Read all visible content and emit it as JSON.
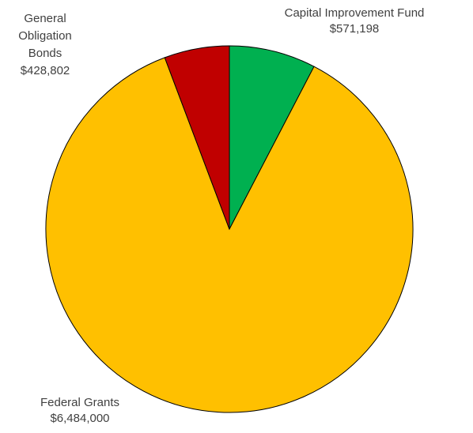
{
  "chart_data": {
    "type": "pie",
    "title": "",
    "categories": [
      "Capital Improvement Fund",
      "Federal Grants",
      "General Obligation Bonds"
    ],
    "values": [
      571198,
      6484000,
      428802
    ],
    "value_labels": [
      "$571,198",
      "$6,484,000",
      "$428,802"
    ],
    "colors": [
      "#00B050",
      "#FFC000",
      "#C00000"
    ],
    "legend": "none",
    "label_lines": [
      [
        "Capital Improvement Fund",
        "$571,198"
      ],
      [
        "Federal Grants",
        "$6,484,000"
      ],
      [
        "General",
        "Obligation",
        "Bonds",
        "$428,802"
      ]
    ]
  }
}
